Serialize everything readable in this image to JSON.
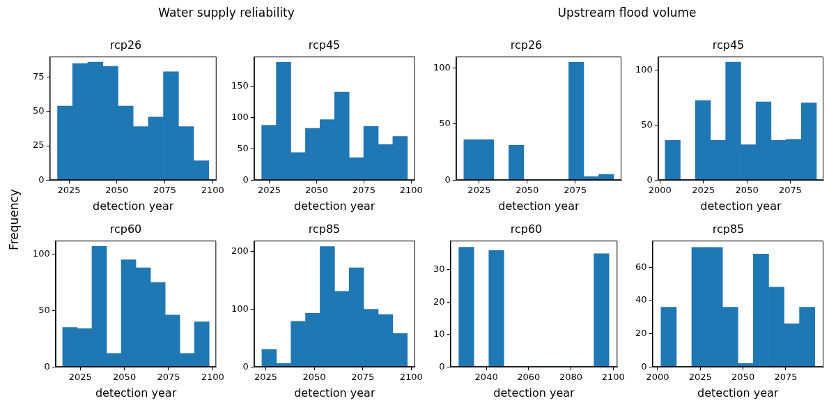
{
  "chart_data": [
    {
      "type": "histogram",
      "title": "rcp26",
      "xlabel": "detection year",
      "ylabel": "Frequency",
      "annotations": [
        "Water supply reliability"
      ],
      "color": "#1f77b4",
      "bins": [
        2019,
        2026.9,
        2034.8,
        2042.7,
        2050.6,
        2058.5,
        2066.4,
        2074.3,
        2082.2,
        2090.1,
        2098
      ],
      "values": [
        54,
        85,
        86,
        83,
        54,
        39,
        46,
        79,
        39,
        14
      ],
      "xlim": [
        2015,
        2102
      ],
      "xticks": [
        2025,
        2050,
        2075,
        2100
      ],
      "ylim": [
        0,
        90
      ],
      "yticks": [
        0,
        25,
        50,
        75
      ]
    },
    {
      "type": "histogram",
      "title": "rcp45",
      "xlabel": "detection year",
      "color": "#1f77b4",
      "bins": [
        2021,
        2028.7,
        2036.4,
        2044.1,
        2051.8,
        2059.5,
        2067.2,
        2074.9,
        2082.6,
        2090.3,
        2098
      ],
      "values": [
        88,
        189,
        44,
        83,
        97,
        141,
        36,
        86,
        57,
        70
      ],
      "xlim": [
        2017,
        2102
      ],
      "xticks": [
        2025,
        2050,
        2075,
        2100
      ],
      "ylim": [
        0,
        198
      ],
      "yticks": [
        0,
        50,
        100,
        150
      ]
    },
    {
      "type": "histogram",
      "title": "rcp26",
      "xlabel": "detection year",
      "annotations": [
        "Upstream flood volume"
      ],
      "color": "#1f77b4",
      "bins": [
        2017,
        2024.8,
        2032.6,
        2040.4,
        2048.2,
        2056,
        2063.8,
        2071.6,
        2079.4,
        2087.2,
        2095
      ],
      "values": [
        36,
        36,
        0,
        31,
        0,
        0,
        0,
        105,
        3,
        5
      ],
      "xlim": [
        2013,
        2099
      ],
      "xticks": [
        2025,
        2050,
        2075
      ],
      "ylim": [
        0,
        110
      ],
      "yticks": [
        0,
        50,
        100
      ]
    },
    {
      "type": "histogram",
      "title": "rcp45",
      "xlabel": "detection year",
      "color": "#1f77b4",
      "bins": [
        2003,
        2011.7,
        2020.4,
        2029.1,
        2037.8,
        2046.5,
        2055.2,
        2063.9,
        2072.6,
        2081.3,
        2090
      ],
      "values": [
        36,
        0,
        72,
        36,
        107,
        32,
        71,
        36,
        37,
        70
      ],
      "xlim": [
        1999,
        2094
      ],
      "xticks": [
        2000,
        2025,
        2050,
        2075
      ],
      "ylim": [
        0,
        112
      ],
      "yticks": [
        0,
        50,
        100
      ]
    },
    {
      "type": "histogram",
      "title": "rcp60",
      "xlabel": "detection year",
      "color": "#1f77b4",
      "bins": [
        2015,
        2023.3,
        2031.6,
        2039.9,
        2048.2,
        2056.5,
        2064.8,
        2073.1,
        2081.4,
        2089.7,
        2098
      ],
      "values": [
        35,
        34,
        107,
        12,
        95,
        88,
        75,
        46,
        12,
        40
      ],
      "xlim": [
        2011,
        2102
      ],
      "xticks": [
        2025,
        2050,
        2075,
        2100
      ],
      "ylim": [
        0,
        112
      ],
      "yticks": [
        0,
        50,
        100
      ]
    },
    {
      "type": "histogram",
      "title": "rcp85",
      "xlabel": "detection year",
      "color": "#1f77b4",
      "bins": [
        2023,
        2030.5,
        2038,
        2045.5,
        2053,
        2060.5,
        2068,
        2075.5,
        2083,
        2090.5,
        2098
      ],
      "values": [
        30,
        6,
        79,
        93,
        209,
        131,
        172,
        100,
        91,
        58
      ],
      "xlim": [
        2019,
        2102
      ],
      "xticks": [
        2025,
        2050,
        2075,
        2100
      ],
      "ylim": [
        0,
        219
      ],
      "yticks": [
        0,
        100,
        200
      ]
    },
    {
      "type": "histogram",
      "title": "rcp60",
      "xlabel": "detection year",
      "color": "#1f77b4",
      "bins": [
        2027,
        2034.1,
        2041.2,
        2048.3,
        2055.4,
        2062.5,
        2069.6,
        2076.7,
        2083.8,
        2090.9,
        2098
      ],
      "values": [
        37,
        0,
        36,
        0,
        0,
        0,
        0,
        0,
        0,
        35
      ],
      "xlim": [
        2023,
        2102
      ],
      "xticks": [
        2040,
        2060,
        2080,
        2100
      ],
      "ylim": [
        0,
        39
      ],
      "yticks": [
        0,
        10,
        20,
        30
      ]
    },
    {
      "type": "histogram",
      "title": "rcp85",
      "xlabel": "detection year",
      "color": "#1f77b4",
      "bins": [
        2002,
        2011,
        2020,
        2029,
        2038,
        2047,
        2056,
        2065,
        2074,
        2083,
        2092
      ],
      "values": [
        36,
        0,
        72,
        72,
        36,
        2,
        68,
        48,
        26,
        36
      ],
      "xlim": [
        1997,
        2097
      ],
      "xticks": [
        2000,
        2025,
        2050,
        2075
      ],
      "ylim": [
        0,
        76
      ],
      "yticks": [
        0,
        20,
        40,
        60
      ]
    }
  ]
}
